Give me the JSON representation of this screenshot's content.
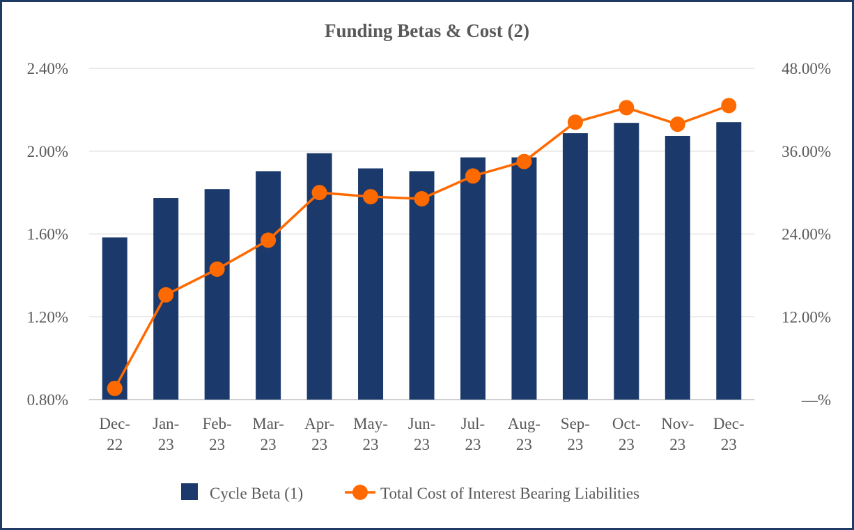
{
  "chart_data": {
    "type": "bar+line",
    "title": "Funding Betas & Cost (2)",
    "categories": [
      [
        "Dec-",
        "22"
      ],
      [
        "Jan-",
        "23"
      ],
      [
        "Feb-",
        "23"
      ],
      [
        "Mar-",
        "23"
      ],
      [
        "Apr-",
        "23"
      ],
      [
        "May-",
        "23"
      ],
      [
        "Jun-",
        "23"
      ],
      [
        "Jul-",
        "23"
      ],
      [
        "Aug-",
        "23"
      ],
      [
        "Sep-",
        "23"
      ],
      [
        "Oct-",
        "23"
      ],
      [
        "Nov-",
        "23"
      ],
      [
        "Dec-",
        "23"
      ]
    ],
    "left_axis": {
      "min": 0.8,
      "max": 2.4,
      "ticks": [
        "2.40%",
        "2.00%",
        "1.60%",
        "1.20%",
        "0.80%"
      ],
      "tick_values": [
        2.4,
        2.0,
        1.6,
        1.2,
        0.8
      ]
    },
    "right_axis": {
      "min": 0,
      "max": 48,
      "ticks": [
        "48.00%",
        "36.00%",
        "24.00%",
        "12.00%",
        "—%"
      ],
      "tick_values": [
        48,
        36,
        24,
        12,
        0
      ]
    },
    "series": [
      {
        "name": "Cycle Beta (1)",
        "type": "bar",
        "axis": "right",
        "color": "#1b3a6b",
        "values": [
          23.5,
          29.2,
          30.5,
          33.1,
          35.7,
          33.5,
          33.1,
          35.1,
          35.1,
          38.6,
          40.1,
          38.2,
          40.2
        ]
      },
      {
        "name": "Total Cost of Interest Bearing Liabilities",
        "type": "line",
        "axis": "left",
        "color": "#ff6a00",
        "values": [
          0.854,
          1.306,
          1.43,
          1.57,
          1.8,
          1.78,
          1.77,
          1.88,
          1.95,
          2.14,
          2.21,
          2.13,
          2.22
        ]
      }
    ],
    "grid": true,
    "legend": "bottom"
  }
}
